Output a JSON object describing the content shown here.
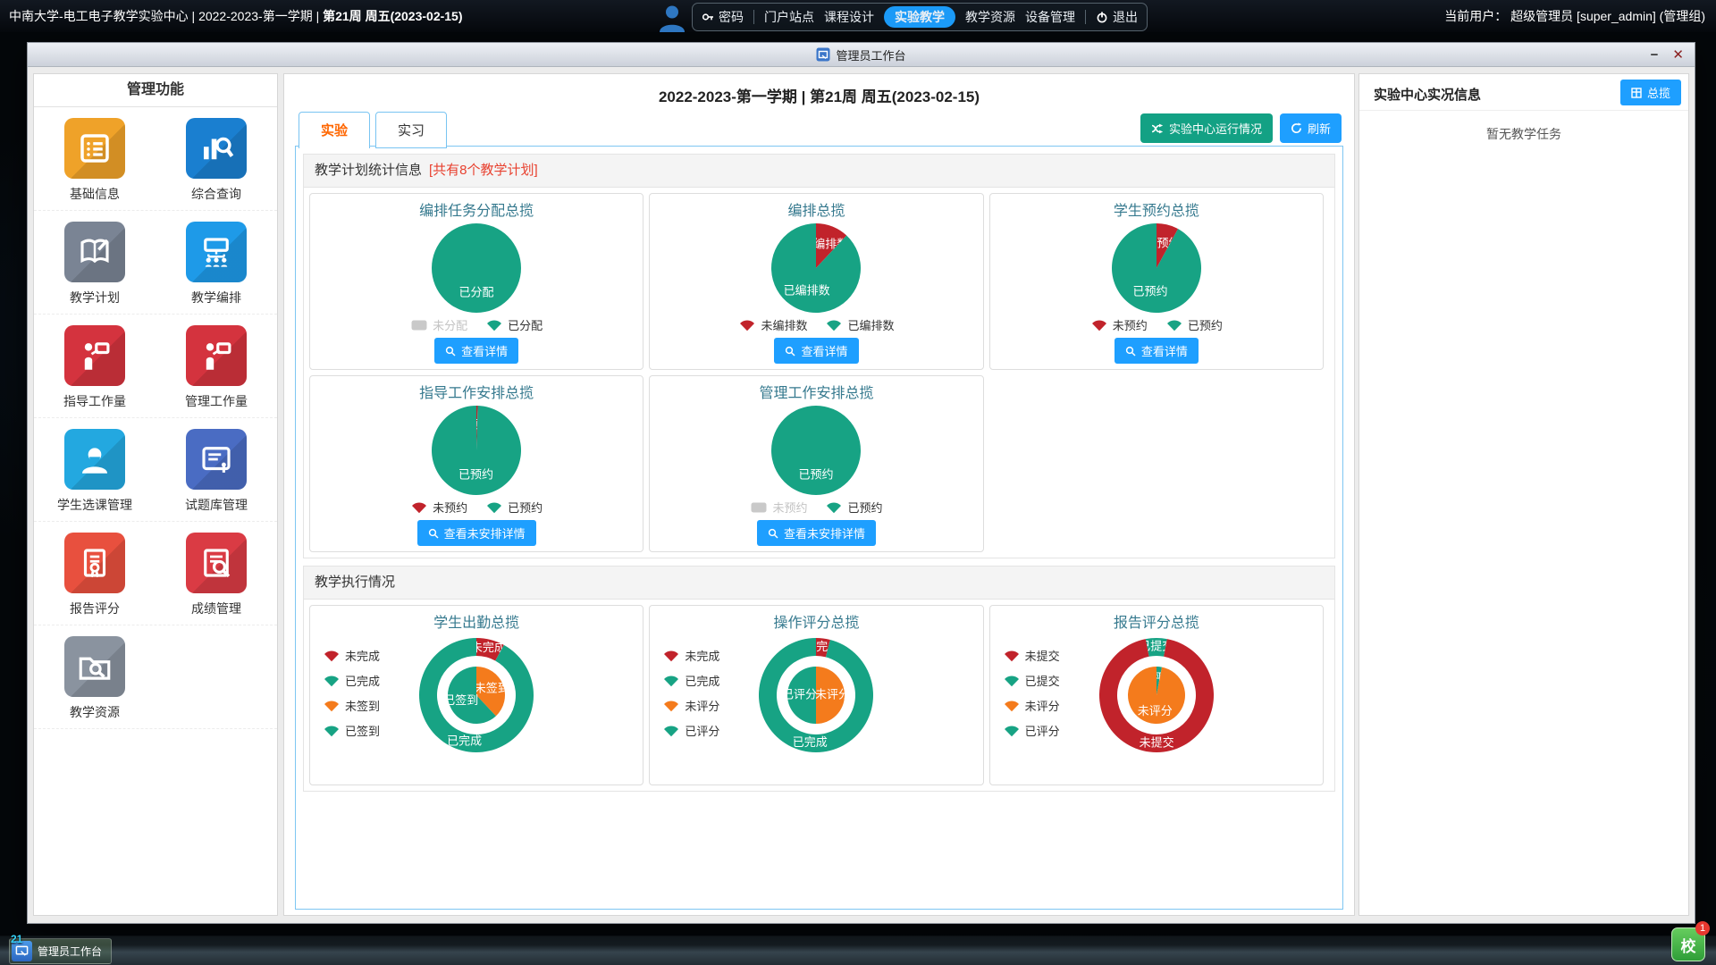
{
  "top_bar": {
    "title_prefix": "中南大学-电工电子教学实验中心 | 2022-2023-第一学期 | ",
    "title_bold": "第21周 周五(2023-02-15)",
    "menu": {
      "password": "密码",
      "portal": "门户站点",
      "course_design": "课程设计",
      "lab_teaching": "实验教学",
      "resources": "教学资源",
      "devices": "设备管理",
      "logout": "退出"
    },
    "current_user": "当前用户： 超级管理员 [super_admin] (管理组)"
  },
  "window": {
    "title": "管理员工作台",
    "minimize": "−",
    "close": "✕"
  },
  "sidebar": {
    "header": "管理功能",
    "items": [
      {
        "label": "基础信息",
        "icon": "list-card",
        "color": "#efa229"
      },
      {
        "label": "综合查询",
        "icon": "chart-search",
        "color": "#1a7fd0"
      },
      {
        "label": "教学计划",
        "icon": "book-pencil",
        "color": "#7a8494"
      },
      {
        "label": "教学编排",
        "icon": "org-board",
        "color": "#1e9ae8"
      },
      {
        "label": "指导工作量",
        "icon": "teacher-board",
        "color": "#d4333e"
      },
      {
        "label": "管理工作量",
        "icon": "teacher-board",
        "color": "#d4333e"
      },
      {
        "label": "学生选课管理",
        "icon": "person",
        "color": "#23a8e0"
      },
      {
        "label": "试题库管理",
        "icon": "tablet-touch",
        "color": "#4a6cc3"
      },
      {
        "label": "报告评分",
        "icon": "certificate",
        "color": "#e8503e"
      },
      {
        "label": "成绩管理",
        "icon": "doc-search",
        "color": "#da3b44"
      },
      {
        "label": "教学资源",
        "icon": "folder-search",
        "color": "#8a939f"
      }
    ]
  },
  "main": {
    "header": "2022-2023-第一学期 | 第21周 周五(2023-02-15)",
    "tabs": [
      {
        "label": "实验"
      },
      {
        "label": "实习"
      }
    ],
    "run_status_button": "实验中心运行情况",
    "refresh_button": "刷新",
    "section1_title": "教学计划统计信息",
    "section1_badge": "[共有8个教学计划]",
    "section2_title": "教学执行情况"
  },
  "right_panel": {
    "header": "实验中心实况信息",
    "overview_button": "总揽",
    "empty_text": "暂无教学任务"
  },
  "taskbar": {
    "item_label": "管理员工作台",
    "item_badge": "21",
    "tray_glyph": "校",
    "tray_badge": "1"
  },
  "colors": {
    "green": "#17a384",
    "red": "#c1232b",
    "orange": "#f47b1c",
    "gray": "#c9c9c9",
    "accent_blue": "#1e9fff",
    "button_green": "#13a184",
    "title_teal": "#35798e"
  },
  "chart_data": [
    {
      "id": "task-assign",
      "type": "pie",
      "title": "编排任务分配总揽",
      "button": "查看详情",
      "slices": [
        {
          "name": "未分配",
          "value": 0,
          "color": "gray"
        },
        {
          "name": "已分配",
          "value": 100,
          "color": "green"
        }
      ],
      "legend": [
        {
          "name": "未分配",
          "color": "gray",
          "disabled": true
        },
        {
          "name": "已分配",
          "color": "green"
        }
      ]
    },
    {
      "id": "arrange",
      "type": "pie",
      "title": "编排总揽",
      "button": "查看详情",
      "slices": [
        {
          "name": "未编排数",
          "value": 12,
          "color": "red"
        },
        {
          "name": "已编排数",
          "value": 88,
          "color": "green"
        }
      ],
      "legend": [
        {
          "name": "未编排数",
          "color": "red"
        },
        {
          "name": "已编排数",
          "color": "green"
        }
      ]
    },
    {
      "id": "student-reserve",
      "type": "pie",
      "title": "学生预约总揽",
      "button": "查看详情",
      "slices": [
        {
          "name": "未预约",
          "value": 8,
          "color": "red"
        },
        {
          "name": "已预约",
          "value": 92,
          "color": "green"
        }
      ],
      "legend": [
        {
          "name": "未预约",
          "color": "red"
        },
        {
          "name": "已预约",
          "color": "green"
        }
      ]
    },
    {
      "id": "guide-arrange",
      "type": "pie",
      "title": "指导工作安排总揽",
      "button": "查看未安排详情",
      "slices": [
        {
          "name": "未预约",
          "value": 0.5,
          "color": "red"
        },
        {
          "name": "已预约",
          "value": 99.5,
          "color": "green"
        }
      ],
      "legend": [
        {
          "name": "未预约",
          "color": "red"
        },
        {
          "name": "已预约",
          "color": "green"
        }
      ]
    },
    {
      "id": "manage-arrange",
      "type": "pie",
      "title": "管理工作安排总揽",
      "button": "查看未安排详情",
      "slices": [
        {
          "name": "未预约",
          "value": 0,
          "color": "gray"
        },
        {
          "name": "已预约",
          "value": 100,
          "color": "green"
        }
      ],
      "legend": [
        {
          "name": "未预约",
          "color": "gray",
          "disabled": true
        },
        {
          "name": "已预约",
          "color": "green"
        }
      ]
    },
    {
      "id": "attendance",
      "type": "donut",
      "title": "学生出勤总揽",
      "outer": [
        {
          "name": "未完成",
          "value": 8,
          "color": "red"
        },
        {
          "name": "已完成",
          "value": 92,
          "color": "green"
        }
      ],
      "inner": [
        {
          "name": "未签到",
          "value": 38,
          "color": "orange"
        },
        {
          "name": "已签到",
          "value": 62,
          "color": "green"
        }
      ],
      "legend": [
        {
          "name": "未完成",
          "color": "red"
        },
        {
          "name": "已完成",
          "color": "green"
        },
        {
          "name": "未签到",
          "color": "orange"
        },
        {
          "name": "已签到",
          "color": "green"
        }
      ]
    },
    {
      "id": "operation-score",
      "type": "donut",
      "title": "操作评分总揽",
      "outer": [
        {
          "name": "未完成",
          "value": 4,
          "color": "red"
        },
        {
          "name": "已完成",
          "value": 96,
          "color": "green"
        }
      ],
      "inner": [
        {
          "name": "未评分",
          "value": 50,
          "color": "orange"
        },
        {
          "name": "已评分",
          "value": 50,
          "color": "green"
        }
      ],
      "legend": [
        {
          "name": "未完成",
          "color": "red"
        },
        {
          "name": "已完成",
          "color": "green"
        },
        {
          "name": "未评分",
          "color": "orange"
        },
        {
          "name": "已评分",
          "color": "green"
        }
      ]
    },
    {
      "id": "report-score",
      "type": "donut",
      "title": "报告评分总揽",
      "outer_start": -101,
      "outer": [
        {
          "name": "已提交",
          "value": 6,
          "color": "green"
        },
        {
          "name": "未提交",
          "value": 94,
          "color": "red"
        }
      ],
      "inner": [
        {
          "name": "已评分",
          "value": 3,
          "color": "green"
        },
        {
          "name": "未评分",
          "value": 97,
          "color": "orange"
        }
      ],
      "legend": [
        {
          "name": "未提交",
          "color": "red"
        },
        {
          "name": "已提交",
          "color": "green"
        },
        {
          "name": "未评分",
          "color": "orange"
        },
        {
          "name": "已评分",
          "color": "green"
        }
      ]
    }
  ]
}
